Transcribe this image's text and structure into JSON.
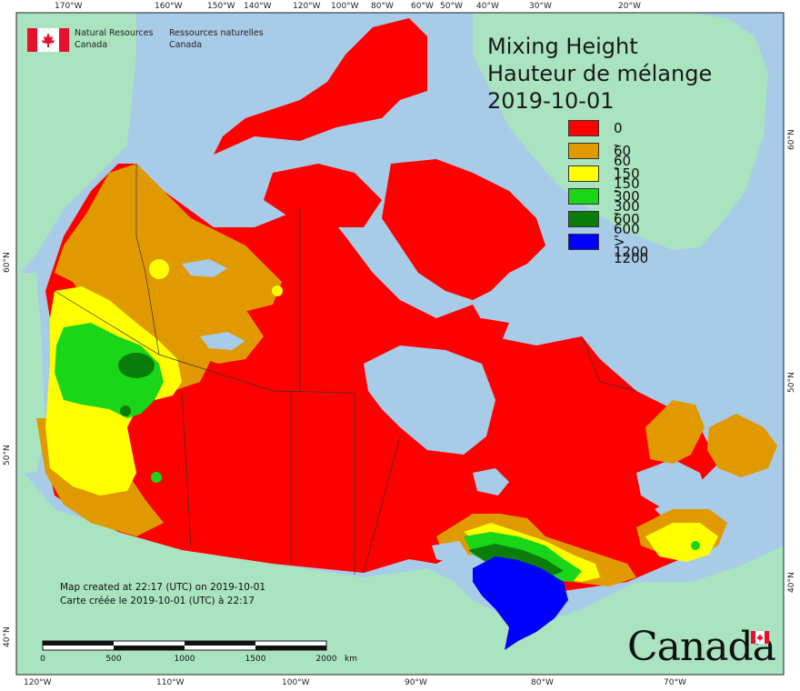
{
  "title": {
    "line1": "Mixing Height",
    "line2": "Hauteur de mélange",
    "date": "2019-10-01"
  },
  "legend": [
    {
      "label": "0 - 60",
      "color": "#ff0000"
    },
    {
      "label": "60 - 150",
      "color": "#e09a00"
    },
    {
      "label": "150 - 300",
      "color": "#ffff00"
    },
    {
      "label": "300 - 600",
      "color": "#19d619"
    },
    {
      "label": "600 - 1200",
      "color": "#0b7d0b"
    },
    {
      "label": "> 1200",
      "color": "#0000ff"
    }
  ],
  "agency": {
    "en_line1": "Natural Resources",
    "en_line2": "Canada",
    "fr_line1": "Ressources naturelles",
    "fr_line2": "Canada"
  },
  "credit": {
    "en": "Map created at 22:17 (UTC) on 2019-10-01",
    "fr": "Carte créée le 2019-10-01 (UTC) à 22:17"
  },
  "scale": {
    "labels": [
      "0",
      "500",
      "1000",
      "1500",
      "2000"
    ],
    "unit": "km"
  },
  "wordmark": "Canada",
  "graticule": {
    "top": [
      "170°W",
      "160°W",
      "150°W",
      "140°W",
      "120°W",
      "100°W",
      "80°W",
      "60°W",
      "50°W",
      "40°W",
      "30°W",
      "20°W"
    ],
    "bottom": [
      "120°W",
      "110°W",
      "100°W",
      "90°W",
      "80°W",
      "70°W"
    ],
    "left": [
      "60°N",
      "50°N",
      "40°N"
    ],
    "right": [
      "60°N",
      "50°N",
      "40°N"
    ]
  },
  "colors": {
    "ocean": "#a8cbe8",
    "land": "#a9e3c0"
  }
}
